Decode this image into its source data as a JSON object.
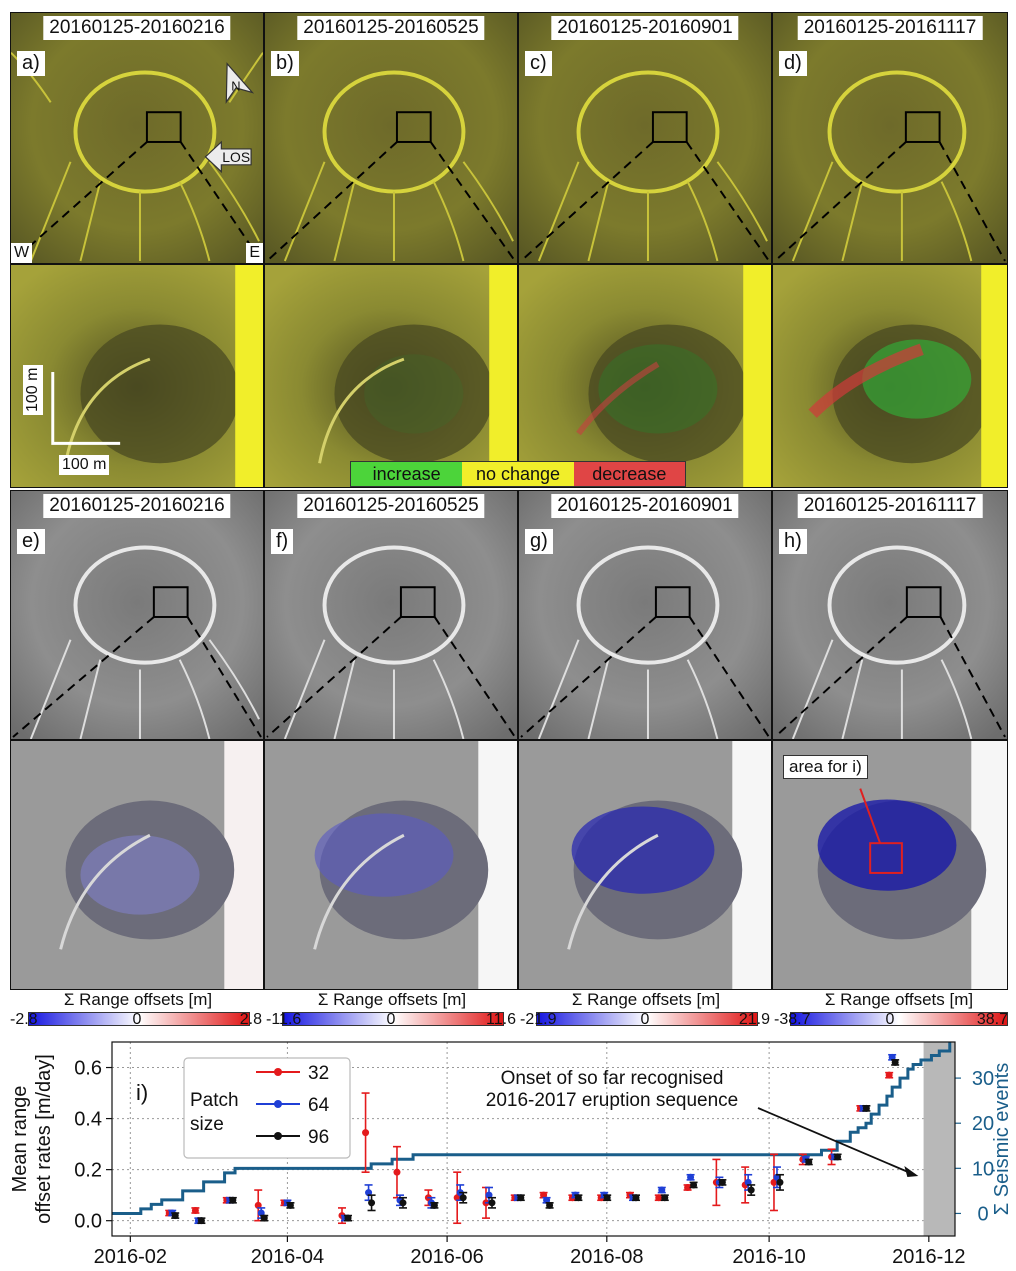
{
  "row1": [
    {
      "date": "20160125-20160216",
      "letter": "a)"
    },
    {
      "date": "20160125-20160525",
      "letter": "b)"
    },
    {
      "date": "20160125-20160901",
      "letter": "c)"
    },
    {
      "date": "20160125-20161117",
      "letter": "d)"
    }
  ],
  "row3": [
    {
      "date": "20160125-20160216",
      "letter": "e)"
    },
    {
      "date": "20160125-20160525",
      "letter": "f)"
    },
    {
      "date": "20160125-20160901",
      "letter": "g)"
    },
    {
      "date": "20160125-20161117",
      "letter": "h)"
    }
  ],
  "annotations": {
    "north": "N",
    "los": "LOS",
    "west": "W",
    "east": "E",
    "scale_vertical": "100 m",
    "scale_horizontal": "100 m",
    "area_label": "area for i)"
  },
  "change_legend": {
    "increase": "increase",
    "no_change": "no change",
    "decrease": "decrease",
    "colors": {
      "increase": "#4cd43a",
      "no_change": "#f1ee2a",
      "decrease": "#e04545"
    }
  },
  "colorbars": [
    {
      "title": "Σ Range offsets [m]",
      "min": "-2.8",
      "mid": "0",
      "max": "2.8"
    },
    {
      "title": "Σ Range offsets [m]",
      "min": "-11.6",
      "mid": "0",
      "max": "11.6"
    },
    {
      "title": "Σ Range offsets [m]",
      "min": "-21.9",
      "mid": "0",
      "max": "21.9"
    },
    {
      "title": "Σ Range offsets [m]",
      "min": "-38.7",
      "mid": "0",
      "max": "38.7"
    }
  ],
  "chart_data": {
    "type": "scatter",
    "panel_letter": "i)",
    "ylabel_lines": [
      "Mean range",
      "offset rates [m/day]"
    ],
    "y2label": "Σ Seismic events",
    "x_tick_labels": [
      "2016-02",
      "2016-04",
      "2016-06",
      "2016-08",
      "2016-10",
      "2016-12"
    ],
    "x_ticks_days": [
      0,
      60,
      121,
      182,
      244,
      305
    ],
    "xlim_days": [
      -7,
      315
    ],
    "ylim": [
      -0.06,
      0.7
    ],
    "y_ticks": [
      "0.0",
      "0.2",
      "0.4",
      "0.6"
    ],
    "y2lim": [
      -5,
      38
    ],
    "y2_ticks": [
      "0",
      "10",
      "20",
      "30"
    ],
    "grid": true,
    "legend_title_lines": [
      "Patch",
      "size"
    ],
    "legend_position": "upper-left",
    "annotation": {
      "lines": [
        "Onset of so far recognised",
        "2016-2017 eruption sequence"
      ],
      "arrow_to_day": 301,
      "arrow_to_y": 0.175
    },
    "eruption_shade_start_day": 303,
    "series": [
      {
        "name": "32",
        "color": "#e41a1c",
        "points": [
          [
            16,
            0.03,
            0.01
          ],
          [
            26,
            0.04,
            0.01
          ],
          [
            38,
            0.08,
            0.01
          ],
          [
            50,
            0.06,
            0.06
          ],
          [
            60,
            0.07,
            0.01
          ],
          [
            82,
            0.02,
            0.03
          ],
          [
            91,
            0.345,
            0.155
          ],
          [
            103,
            0.19,
            0.1
          ],
          [
            115,
            0.09,
            0.03
          ],
          [
            126,
            0.09,
            0.1
          ],
          [
            137,
            0.07,
            0.06
          ],
          [
            148,
            0.09,
            0.01
          ],
          [
            159,
            0.1,
            0.01
          ],
          [
            170,
            0.09,
            0.01
          ],
          [
            181,
            0.09,
            0.01
          ],
          [
            192,
            0.1,
            0.01
          ],
          [
            203,
            0.09,
            0.01
          ],
          [
            214,
            0.13,
            0.01
          ],
          [
            225,
            0.15,
            0.09
          ],
          [
            236,
            0.14,
            0.07
          ],
          [
            247,
            0.15,
            0.11
          ],
          [
            258,
            0.24,
            0.02
          ],
          [
            269,
            0.25,
            0.03
          ],
          [
            280,
            0.44,
            0.01
          ],
          [
            291,
            0.57,
            0.01
          ]
        ]
      },
      {
        "name": "64",
        "color": "#1f3fd6",
        "points": [
          [
            16,
            0.03,
            0.01
          ],
          [
            26,
            0.0,
            0.01
          ],
          [
            38,
            0.08,
            0.01
          ],
          [
            50,
            0.03,
            0.02
          ],
          [
            60,
            0.07,
            0.01
          ],
          [
            82,
            0.01,
            0.01
          ],
          [
            91,
            0.11,
            0.03
          ],
          [
            103,
            0.08,
            0.02
          ],
          [
            115,
            0.07,
            0.02
          ],
          [
            126,
            0.11,
            0.03
          ],
          [
            137,
            0.1,
            0.03
          ],
          [
            148,
            0.09,
            0.01
          ],
          [
            159,
            0.08,
            0.01
          ],
          [
            170,
            0.1,
            0.01
          ],
          [
            181,
            0.1,
            0.01
          ],
          [
            192,
            0.09,
            0.01
          ],
          [
            203,
            0.12,
            0.01
          ],
          [
            214,
            0.17,
            0.01
          ],
          [
            225,
            0.15,
            0.02
          ],
          [
            236,
            0.15,
            0.03
          ],
          [
            247,
            0.17,
            0.04
          ],
          [
            258,
            0.24,
            0.01
          ],
          [
            269,
            0.25,
            0.01
          ],
          [
            280,
            0.44,
            0.01
          ],
          [
            291,
            0.64,
            0.01
          ]
        ]
      },
      {
        "name": "96",
        "color": "#111111",
        "points": [
          [
            16,
            0.02,
            0.01
          ],
          [
            26,
            0.0,
            0.01
          ],
          [
            38,
            0.08,
            0.01
          ],
          [
            50,
            0.01,
            0.01
          ],
          [
            60,
            0.06,
            0.01
          ],
          [
            82,
            0.01,
            0.01
          ],
          [
            91,
            0.07,
            0.03
          ],
          [
            103,
            0.07,
            0.02
          ],
          [
            115,
            0.06,
            0.01
          ],
          [
            126,
            0.09,
            0.02
          ],
          [
            137,
            0.07,
            0.02
          ],
          [
            148,
            0.09,
            0.01
          ],
          [
            159,
            0.06,
            0.01
          ],
          [
            170,
            0.09,
            0.01
          ],
          [
            181,
            0.09,
            0.01
          ],
          [
            192,
            0.09,
            0.01
          ],
          [
            203,
            0.09,
            0.01
          ],
          [
            214,
            0.14,
            0.01
          ],
          [
            225,
            0.15,
            0.01
          ],
          [
            236,
            0.12,
            0.02
          ],
          [
            247,
            0.15,
            0.03
          ],
          [
            258,
            0.23,
            0.01
          ],
          [
            269,
            0.25,
            0.01
          ],
          [
            280,
            0.44,
            0.01
          ],
          [
            291,
            0.62,
            0.01
          ]
        ]
      }
    ],
    "seismic_series": {
      "color": "#1a5e8a",
      "steps": [
        [
          -7,
          0
        ],
        [
          0,
          0
        ],
        [
          4,
          1
        ],
        [
          8,
          2
        ],
        [
          12,
          3
        ],
        [
          16,
          3
        ],
        [
          20,
          5
        ],
        [
          24,
          5
        ],
        [
          28,
          7
        ],
        [
          32,
          7
        ],
        [
          36,
          9
        ],
        [
          40,
          10
        ],
        [
          44,
          10
        ],
        [
          88,
          10
        ],
        [
          92,
          11
        ],
        [
          96,
          11
        ],
        [
          100,
          12
        ],
        [
          104,
          12
        ],
        [
          108,
          13
        ],
        [
          112,
          13
        ],
        [
          262,
          13
        ],
        [
          264,
          14
        ],
        [
          268,
          14
        ],
        [
          270,
          16
        ],
        [
          272,
          16
        ],
        [
          275,
          18
        ],
        [
          278,
          19
        ],
        [
          281,
          20
        ],
        [
          283,
          22
        ],
        [
          286,
          24
        ],
        [
          289,
          26
        ],
        [
          291,
          28
        ],
        [
          294,
          30
        ],
        [
          297,
          32
        ],
        [
          299,
          33
        ],
        [
          302,
          34
        ],
        [
          306,
          35
        ],
        [
          309,
          36
        ],
        [
          313,
          38
        ]
      ]
    }
  }
}
